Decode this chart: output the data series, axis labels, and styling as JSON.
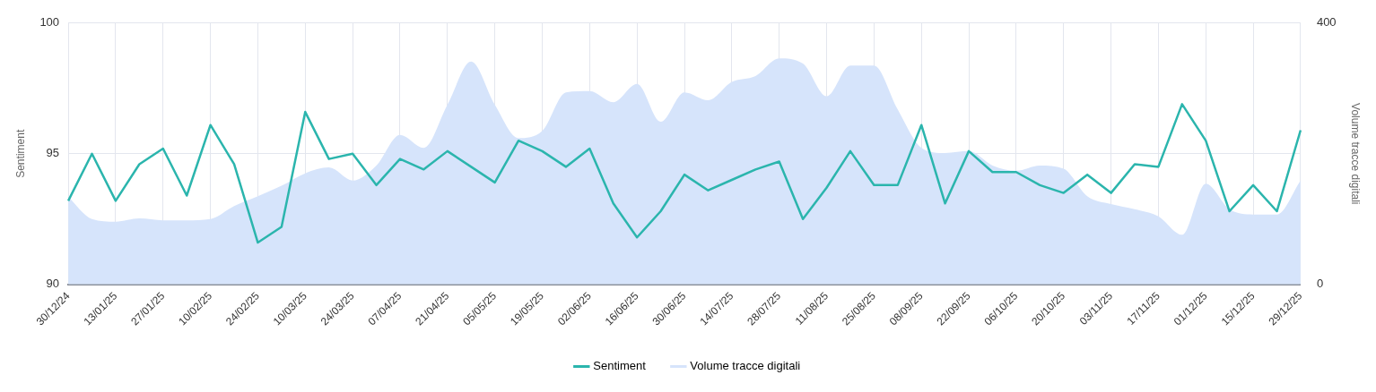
{
  "chart_data": {
    "type": "line",
    "categories": [
      "30/12/24",
      null,
      "13/01/25",
      null,
      "27/01/25",
      null,
      "10/02/25",
      null,
      "24/02/25",
      null,
      "10/03/25",
      null,
      "24/03/25",
      null,
      "07/04/25",
      null,
      "21/04/25",
      null,
      "05/05/25",
      null,
      "19/05/25",
      null,
      "02/06/25",
      null,
      "16/06/25",
      null,
      "30/06/25",
      null,
      "14/07/25",
      null,
      "28/07/25",
      null,
      "11/08/25",
      null,
      "25/08/25",
      null,
      "08/09/25",
      null,
      "22/09/25",
      null,
      "06/10/25",
      null,
      "20/10/25",
      null,
      "03/11/25",
      null,
      "17/11/25",
      null,
      "01/12/25",
      null,
      "15/12/25",
      null,
      "29/12/25"
    ],
    "series": [
      {
        "name": "Sentiment",
        "color": "#2bb5ad",
        "values": [
          93.2,
          95.0,
          93.2,
          94.6,
          95.2,
          93.4,
          96.1,
          94.6,
          91.6,
          92.2,
          96.6,
          94.8,
          95.0,
          93.8,
          94.8,
          94.4,
          95.1,
          94.5,
          93.9,
          95.5,
          95.1,
          94.5,
          95.2,
          93.1,
          91.8,
          92.8,
          94.2,
          93.6,
          94.0,
          94.4,
          94.7,
          92.5,
          93.7,
          95.1,
          93.8,
          93.8,
          96.1,
          93.1,
          95.1,
          94.3,
          94.3,
          93.8,
          93.5,
          94.2,
          93.5,
          94.6,
          94.5,
          96.9,
          95.5,
          92.8,
          93.8,
          92.8,
          95.9
        ]
      },
      {
        "name": "Volume tracce digitali",
        "type": "area",
        "axis": "y2",
        "color": "#d6e4fb",
        "values": [
          134,
          100,
          96,
          101,
          98,
          98,
          100,
          120,
          135,
          151,
          170,
          179,
          159,
          182,
          229,
          209,
          275,
          341,
          275,
          224,
          235,
          294,
          296,
          279,
          307,
          249,
          294,
          282,
          310,
          319,
          346,
          338,
          288,
          335,
          335,
          268,
          209,
          201,
          204,
          182,
          174,
          182,
          177,
          135,
          123,
          115,
          104,
          76,
          154,
          115,
          107,
          107,
          159
        ]
      }
    ],
    "ylabel": "Sentiment",
    "y2label": "Volume tracce digitali",
    "ylim": [
      90,
      100
    ],
    "yticks": [
      90,
      95,
      100
    ],
    "y2lim": [
      0,
      400
    ],
    "y2ticks": [
      0,
      400
    ],
    "grid": true,
    "legend": "bottom"
  }
}
